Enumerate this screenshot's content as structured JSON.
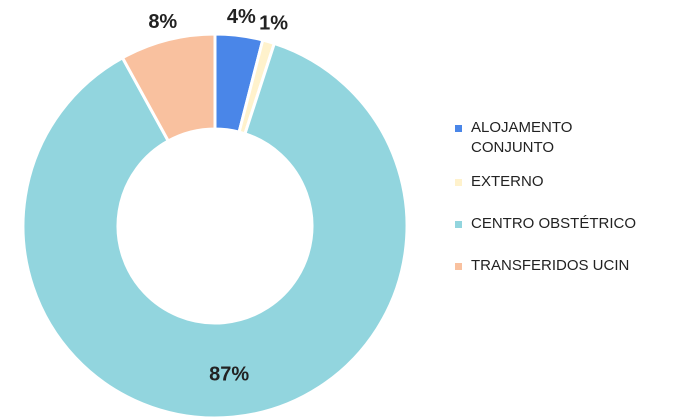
{
  "chart_data": {
    "type": "donut",
    "categories": [
      "ALOJAMENTO CONJUNTO",
      "EXTERNO",
      "CENTRO OBSTÉTRICO",
      "TRANSFERIDOS UCIN"
    ],
    "values": [
      4,
      1,
      87,
      8
    ],
    "value_labels": [
      "4%",
      "1%",
      "87%",
      "8%"
    ],
    "colors": [
      "#4a86e8",
      "#fff2cc",
      "#92d5de",
      "#f9c19f"
    ],
    "legend": "right"
  }
}
